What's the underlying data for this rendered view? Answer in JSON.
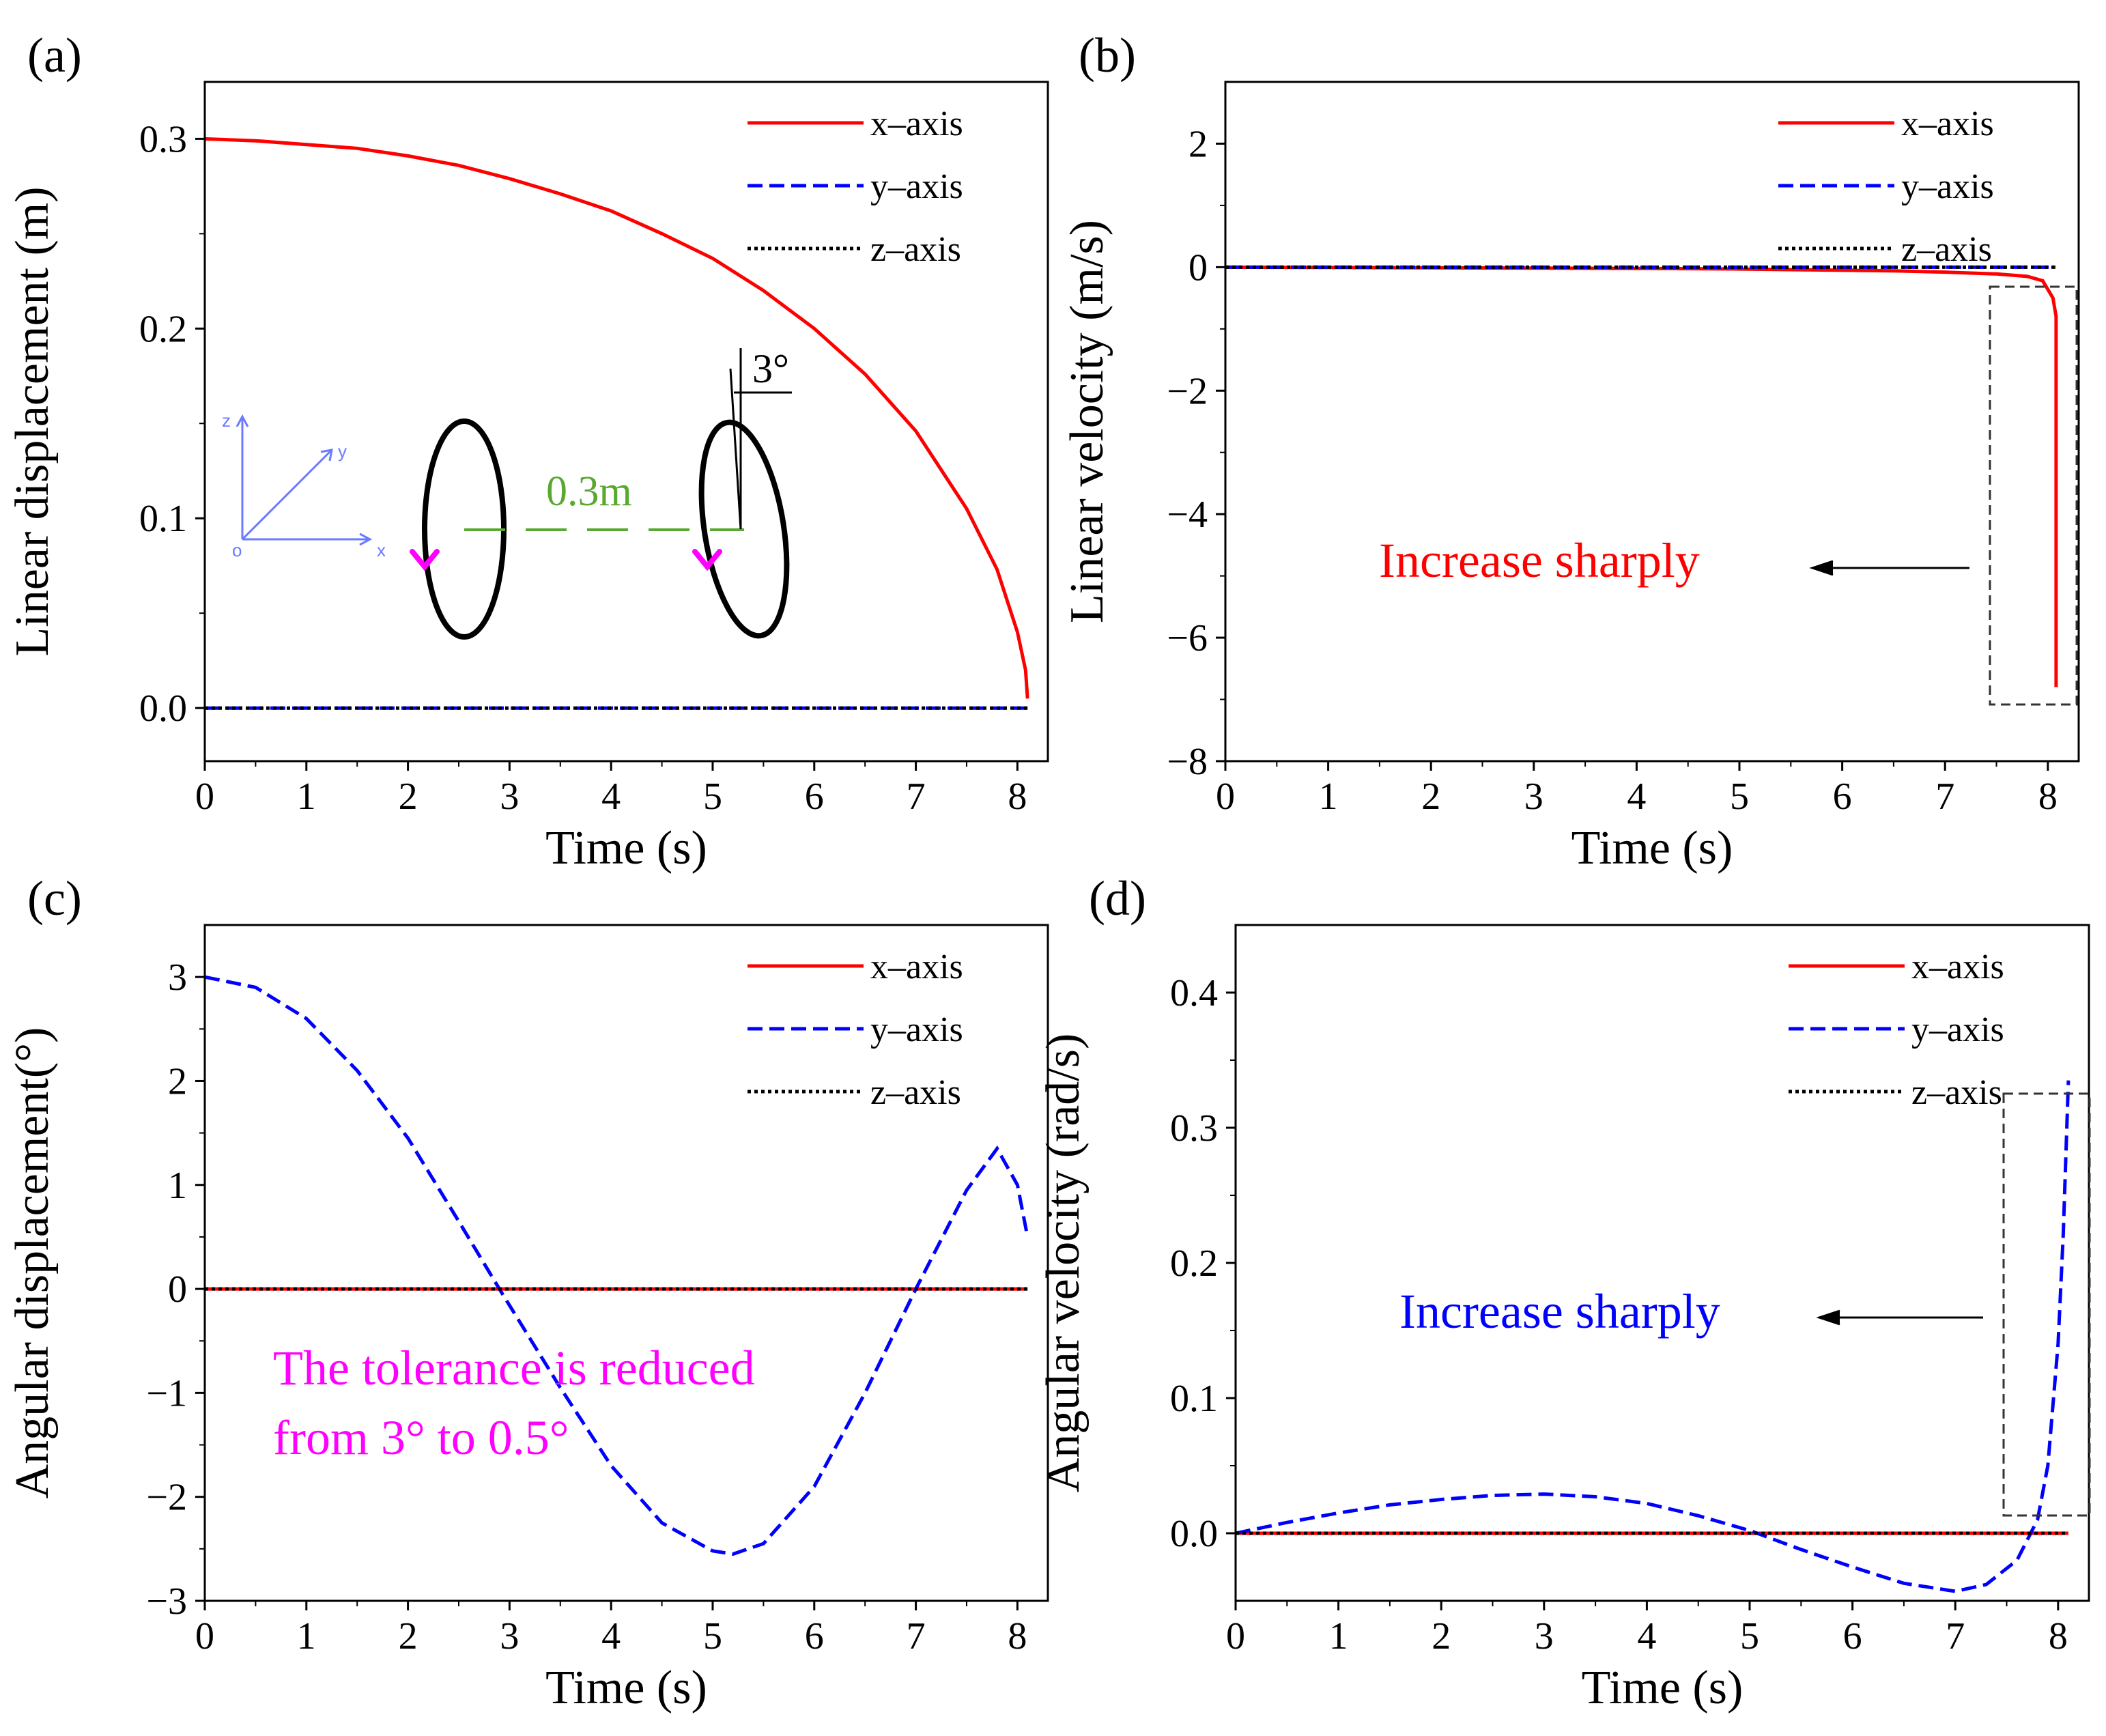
{
  "colors": {
    "x": "#ff0000",
    "y": "#0000ff",
    "z": "#000000",
    "accent_green": "#5aa832",
    "accent_magenta": "#ff00ff",
    "inset_blue": "#6a7bff"
  },
  "legend": [
    "x–axis",
    "y–axis",
    "z–axis"
  ],
  "chart_data": [
    {
      "panel": "(a)",
      "type": "line",
      "xlabel": "Time (s)",
      "ylabel": "Linear displacement (m)",
      "xlim": [
        0,
        8.3
      ],
      "ylim": [
        -0.028,
        0.33
      ],
      "xticks": [
        "0",
        "1",
        "2",
        "3",
        "4",
        "5",
        "6",
        "7",
        "8"
      ],
      "yticks": [
        "0.0",
        "0.1",
        "0.2",
        "0.3"
      ],
      "ytick_values": [
        0,
        0.1,
        0.2,
        0.3
      ],
      "series": [
        {
          "name": "x–axis",
          "style": "solid",
          "x": [
            0,
            0.5,
            1,
            1.5,
            2,
            2.5,
            3,
            3.5,
            4,
            4.5,
            5,
            5.5,
            6,
            6.5,
            7,
            7.5,
            7.8,
            8,
            8.08,
            8.1
          ],
          "y": [
            0.3,
            0.299,
            0.297,
            0.295,
            0.291,
            0.286,
            0.279,
            0.271,
            0.262,
            0.25,
            0.237,
            0.22,
            0.2,
            0.176,
            0.146,
            0.105,
            0.073,
            0.04,
            0.02,
            0.005
          ]
        },
        {
          "name": "y–axis",
          "style": "dashed",
          "x": [
            0,
            8.1
          ],
          "y": [
            0,
            0
          ]
        },
        {
          "name": "z–axis",
          "style": "dotted",
          "x": [
            0,
            8.1
          ],
          "y": [
            0,
            0
          ]
        }
      ],
      "inset": {
        "offset_label": "0.3m",
        "angle_label": "3°",
        "axis_labels": [
          "z",
          "y",
          "x",
          "o"
        ]
      }
    },
    {
      "panel": "(b)",
      "type": "line",
      "xlabel": "Time (s)",
      "ylabel": "Linear velocity (m/s)",
      "xlim": [
        0,
        8.3
      ],
      "ylim": [
        -8,
        3
      ],
      "xticks": [
        "0",
        "1",
        "2",
        "3",
        "4",
        "5",
        "6",
        "7",
        "8"
      ],
      "yticks": [
        "−8",
        "−6",
        "−4",
        "−2",
        "0",
        "2"
      ],
      "ytick_values": [
        -8,
        -6,
        -4,
        -2,
        0,
        2
      ],
      "series": [
        {
          "name": "x–axis",
          "style": "solid",
          "x": [
            0,
            1,
            2,
            3,
            4,
            5,
            5.5,
            6,
            6.5,
            7,
            7.5,
            7.8,
            7.95,
            8.05,
            8.08,
            8.08
          ],
          "y": [
            0,
            -0.005,
            -0.01,
            -0.015,
            -0.02,
            -0.03,
            -0.04,
            -0.05,
            -0.06,
            -0.08,
            -0.11,
            -0.15,
            -0.22,
            -0.5,
            -0.8,
            -6.8
          ]
        },
        {
          "name": "y–axis",
          "style": "dashed",
          "x": [
            0,
            8.08
          ],
          "y": [
            0,
            0
          ]
        },
        {
          "name": "z–axis",
          "style": "dotted",
          "x": [
            0,
            8.08
          ],
          "y": [
            0,
            0
          ]
        }
      ],
      "annotation": "Increase sharply"
    },
    {
      "panel": "(c)",
      "type": "line",
      "xlabel": "Time (s)",
      "ylabel": "Angular displacement(°)",
      "xlim": [
        0,
        8.3
      ],
      "ylim": [
        -3,
        3.5
      ],
      "xticks": [
        "0",
        "1",
        "2",
        "3",
        "4",
        "5",
        "6",
        "7",
        "8"
      ],
      "yticks": [
        "−3",
        "−2",
        "−1",
        "0",
        "1",
        "2",
        "3"
      ],
      "ytick_values": [
        -3,
        -2,
        -1,
        0,
        1,
        2,
        3
      ],
      "series": [
        {
          "name": "x–axis",
          "style": "solid",
          "x": [
            0,
            8.1
          ],
          "y": [
            0,
            0
          ]
        },
        {
          "name": "y–axis",
          "style": "dashed",
          "x": [
            0,
            0.5,
            1,
            1.5,
            2,
            2.5,
            2.9,
            3.5,
            4,
            4.5,
            5,
            5.2,
            5.5,
            6,
            6.5,
            7,
            7.5,
            7.8,
            8,
            8.1
          ],
          "y": [
            3,
            2.9,
            2.6,
            2.1,
            1.45,
            0.65,
            0,
            -0.95,
            -1.7,
            -2.25,
            -2.52,
            -2.55,
            -2.45,
            -1.9,
            -1.0,
            0.0,
            0.95,
            1.35,
            1.0,
            0.5
          ]
        },
        {
          "name": "z–axis",
          "style": "dotted",
          "x": [
            0,
            8.1
          ],
          "y": [
            0,
            0
          ]
        }
      ],
      "annotation": [
        "The tolerance is reduced",
        "from 3° to 0.5°"
      ]
    },
    {
      "panel": "(d)",
      "type": "line",
      "xlabel": "Time (s)",
      "ylabel": "Angular velocity (rad/s)",
      "xlim": [
        0,
        8.3
      ],
      "ylim": [
        -0.05,
        0.45
      ],
      "xticks": [
        "0",
        "1",
        "2",
        "3",
        "4",
        "5",
        "6",
        "7",
        "8"
      ],
      "yticks": [
        "0.0",
        "0.1",
        "0.2",
        "0.3",
        "0.4"
      ],
      "ytick_values": [
        0,
        0.1,
        0.2,
        0.3,
        0.4
      ],
      "series": [
        {
          "name": "x–axis",
          "style": "solid",
          "x": [
            0,
            8.1
          ],
          "y": [
            0,
            0
          ]
        },
        {
          "name": "y–axis",
          "style": "dashed",
          "x": [
            0,
            0.5,
            1,
            1.5,
            2,
            2.5,
            3,
            3.5,
            4,
            4.5,
            5,
            5.5,
            6,
            6.5,
            7,
            7.3,
            7.6,
            7.8,
            7.9,
            8,
            8.05,
            8.1
          ],
          "y": [
            0,
            0.008,
            0.015,
            0.021,
            0.025,
            0.028,
            0.029,
            0.027,
            0.022,
            0.013,
            0.002,
            -0.012,
            -0.025,
            -0.037,
            -0.043,
            -0.038,
            -0.02,
            0.01,
            0.05,
            0.14,
            0.22,
            0.335
          ]
        },
        {
          "name": "z–axis",
          "style": "dotted",
          "x": [
            0,
            8.1
          ],
          "y": [
            0,
            0
          ]
        }
      ],
      "annotation": "Increase sharply"
    }
  ]
}
